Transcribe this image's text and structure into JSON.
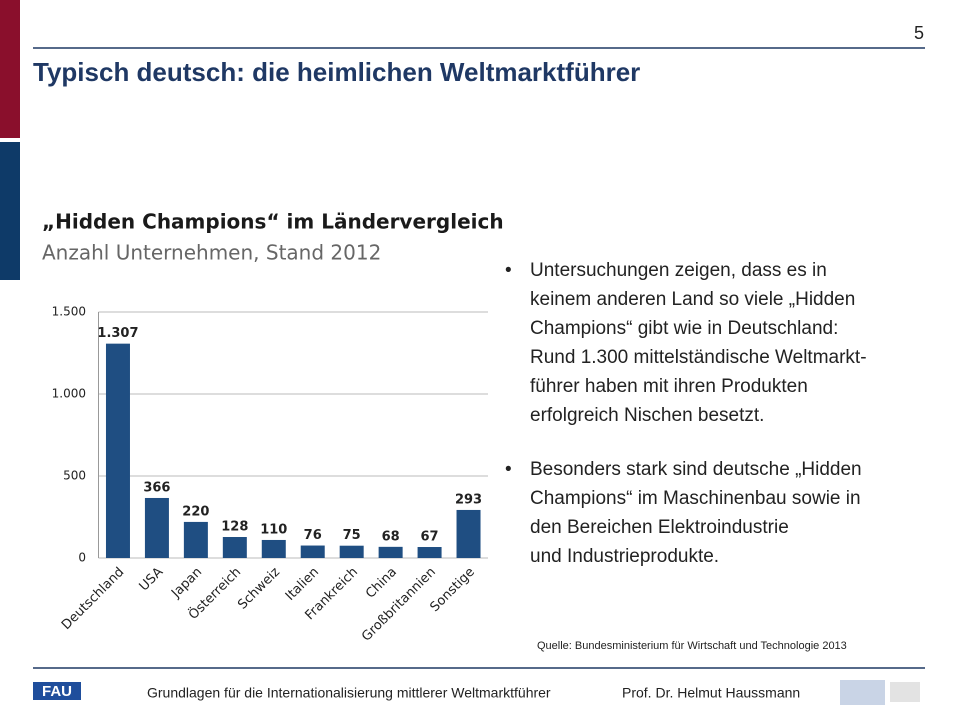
{
  "page_number": "5",
  "title": "Typisch deutsch: die heimlichen Weltmarktführer",
  "bullets": [
    [
      "Untersuchungen zeigen, dass es in",
      "keinem anderen Land so viele „Hidden",
      "Champions“ gibt wie in Deutschland:",
      "Rund 1.300 mittelständische Weltmarkt-",
      "führer haben mit ihren Produkten",
      "erfolgreich Nischen besetzt."
    ],
    [
      "Besonders stark sind deutsche „Hidden",
      "Champions“ im Maschinenbau sowie in",
      "den Bereichen Elektroindustrie",
      "und Industrieprodukte."
    ]
  ],
  "source": "Quelle: Bundesministerium für Wirtschaft und Technologie  2013",
  "footer": {
    "course": "Grundlagen für die Internationalisierung mittlerer Weltmarktführer",
    "author": "Prof. Dr. Helmut Haussmann",
    "logo": "FAU"
  },
  "chart_data": {
    "type": "bar",
    "title": "„Hidden Champions“ im Ländervergleich",
    "subtitle": "Anzahl Unternehmen, Stand 2012",
    "categories": [
      "Deutschland",
      "USA",
      "Japan",
      "Österreich",
      "Schweiz",
      "Italien",
      "Frankreich",
      "China",
      "Großbritannien",
      "Sonstige"
    ],
    "values": [
      1307,
      366,
      220,
      128,
      110,
      76,
      75,
      68,
      67,
      293
    ],
    "value_labels": [
      "1.307",
      "366",
      "220",
      "128",
      "110",
      "76",
      "75",
      "68",
      "67",
      "293"
    ],
    "color": "#1f4e82",
    "ylim": [
      0,
      1500
    ],
    "yticks": [
      0,
      500,
      {
        "value": 1000,
        "label": "1.000"
      },
      {
        "value": 1500,
        "label": "1.500"
      }
    ],
    "grid": true
  }
}
